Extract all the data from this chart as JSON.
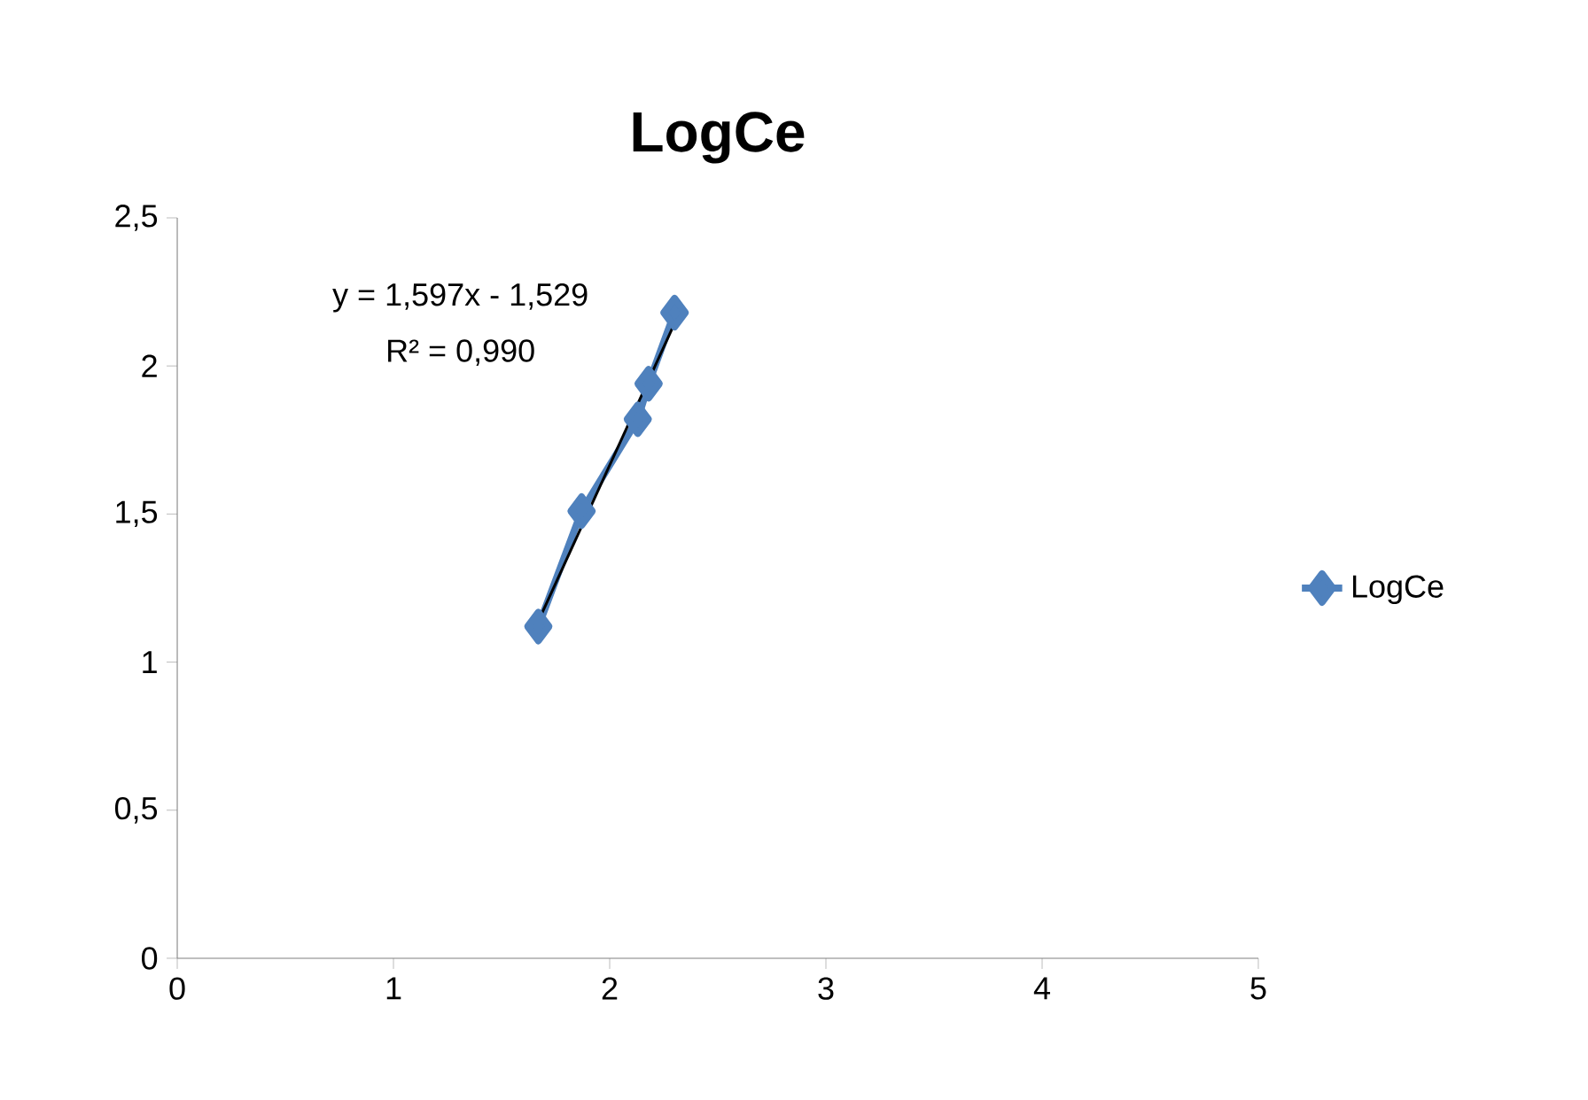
{
  "chart_data": {
    "type": "line",
    "title": "LogCe",
    "series": [
      {
        "name": "LogCe",
        "color": "#4f81bd",
        "marker": "diamond",
        "x": [
          1.67,
          1.87,
          2.13,
          2.18,
          2.3
        ],
        "values": [
          1.12,
          1.51,
          1.82,
          1.94,
          2.18
        ]
      },
      {
        "type": "line",
        "color": "#000000",
        "marker": "none",
        "x": [
          1.67,
          2.3
        ],
        "values": [
          1.138,
          2.144
        ]
      }
    ],
    "xlim": [
      0,
      5
    ],
    "ylim": [
      0,
      2.5
    ],
    "xticks": [
      0,
      1,
      2,
      3,
      4,
      5
    ],
    "yticks": [
      0,
      {
        "value": 0.5,
        "label": "0,5"
      },
      1,
      {
        "value": 1.5,
        "label": "1,5"
      },
      2,
      {
        "value": 2.5,
        "label": "2,5"
      }
    ],
    "legend": "right",
    "annotations": [
      "y = 1,597x - 1,529",
      "R² = 0,990"
    ]
  }
}
